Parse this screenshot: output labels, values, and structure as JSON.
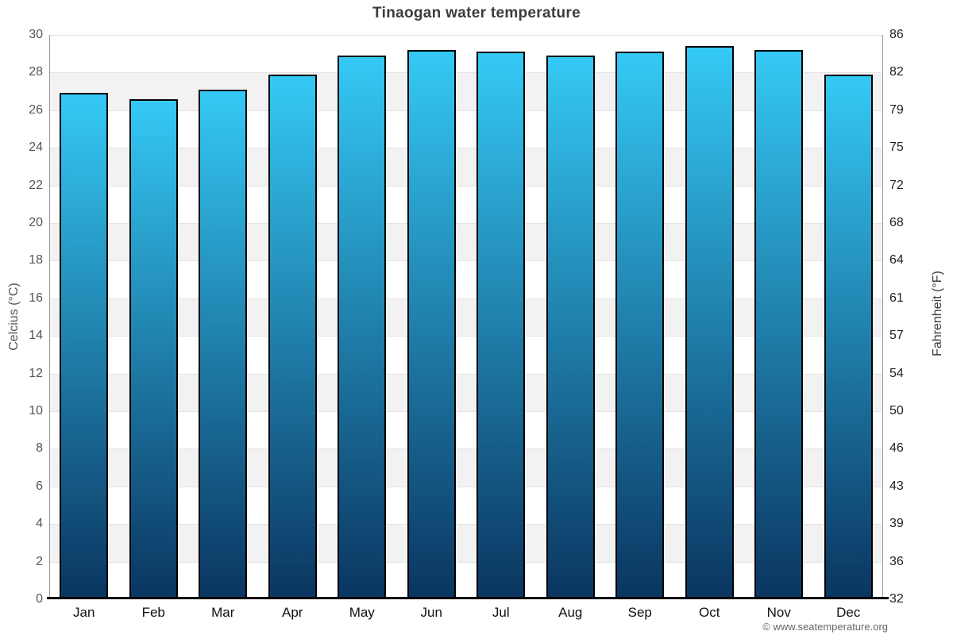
{
  "chart_data": {
    "type": "bar",
    "title": "Tinaogan water temperature",
    "categories": [
      "Jan",
      "Feb",
      "Mar",
      "Apr",
      "May",
      "Jun",
      "Jul",
      "Aug",
      "Sep",
      "Oct",
      "Nov",
      "Dec"
    ],
    "values": [
      26.9,
      26.6,
      27.1,
      27.9,
      28.9,
      29.2,
      29.1,
      28.9,
      29.1,
      29.4,
      29.2,
      27.9
    ],
    "unit": "°C",
    "ylabel_left": "Celcius (°C)",
    "ylabel_right": "Fahrenheit (°F)",
    "ylim": [
      0,
      30
    ],
    "yticks_celsius": [
      0,
      2,
      4,
      6,
      8,
      10,
      12,
      14,
      16,
      18,
      20,
      22,
      24,
      26,
      28,
      30
    ],
    "yticks_fahrenheit": [
      32,
      36,
      39,
      43,
      46,
      50,
      54,
      57,
      61,
      64,
      68,
      72,
      75,
      79,
      82,
      86
    ],
    "grid": "horizontal-bands-alternating",
    "legend": "none",
    "colors": {
      "bar_top": "#35c9f5",
      "bar_bottom": "#0a3560",
      "bar_border": "#000000",
      "band_fill": "#f2f2f2",
      "band_fill_alt": "#ffffff",
      "grid_line": "#e4e4e4",
      "axis_line": "#999999",
      "baseline": "#000000"
    }
  },
  "footer": {
    "copyright": "© www.seatemperature.org"
  }
}
